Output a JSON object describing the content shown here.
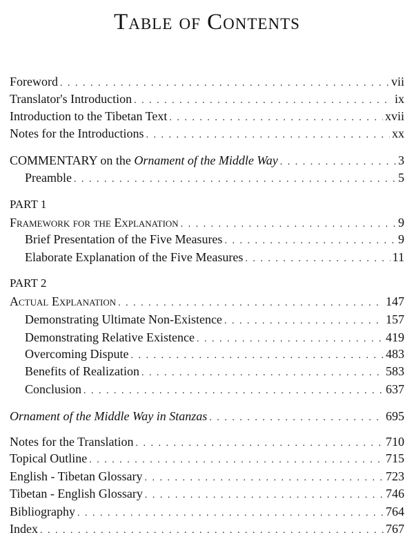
{
  "title": "Table of Contents",
  "front": [
    {
      "label": "Foreword",
      "page": "vii"
    },
    {
      "label": "Translator's Introduction",
      "page": "ix"
    },
    {
      "label": "Introduction to the Tibetan Text",
      "page": "xvii"
    },
    {
      "label": "Notes for the Introductions",
      "page": "xx"
    }
  ],
  "commentary": {
    "prefix": "COMMENTARY on the ",
    "italic": "Ornament of the Middle Way",
    "page": "3"
  },
  "preamble": {
    "label": "Preamble",
    "page": "5"
  },
  "part1": {
    "heading": "PART 1",
    "section": {
      "label": "Framework for the Explanation",
      "page": "9"
    },
    "items": [
      {
        "label": "Brief Presentation of the Five Measures",
        "page": "9"
      },
      {
        "label": "Elaborate Explanation of the Five Measures",
        "page": "11"
      }
    ]
  },
  "part2": {
    "heading": "PART 2",
    "section": {
      "label": "Actual Explanation",
      "page": "147"
    },
    "items": [
      {
        "label": "Demonstrating Ultimate Non-Existence",
        "page": "157"
      },
      {
        "label": "Demonstrating Relative Existence",
        "page": "419"
      },
      {
        "label": "Overcoming Dispute",
        "page": "483"
      },
      {
        "label": "Benefits of Realization",
        "page": "583"
      },
      {
        "label": "Conclusion",
        "page": "637"
      }
    ]
  },
  "stanzas": {
    "label": "Ornament of the Middle Way in Stanzas",
    "page": "695"
  },
  "back": [
    {
      "label": "Notes for the Translation",
      "page": "710"
    },
    {
      "label": "Topical Outline",
      "page": "715"
    },
    {
      "label": "English - Tibetan Glossary",
      "page": "723"
    },
    {
      "label": "Tibetan - English Glossary",
      "page": "746"
    },
    {
      "label": "Bibliography",
      "page": "764"
    },
    {
      "label": "Index",
      "page": "767"
    }
  ]
}
